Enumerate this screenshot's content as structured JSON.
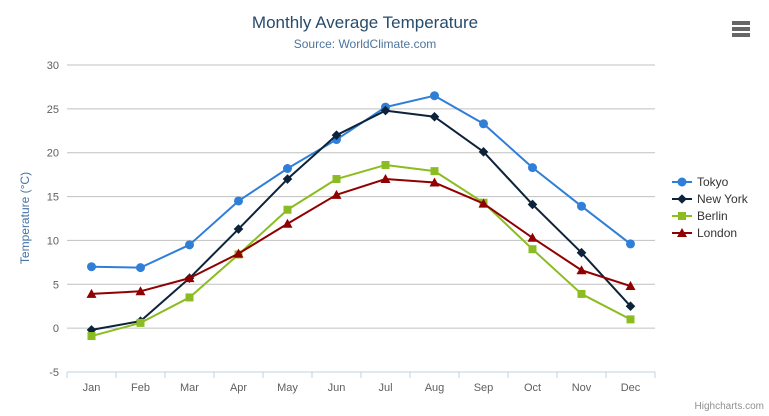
{
  "header": {
    "title": "Monthly Average Temperature",
    "subtitle": "Source: WorldClimate.com"
  },
  "credits": {
    "label": "Highcharts.com"
  },
  "colors": {
    "title": "#274b6d",
    "subtitle": "#4d759e",
    "axis_title": "#4572a7",
    "tick_label": "#606060",
    "grid": "#c0c0c0",
    "axis_line": "#c0d0e0",
    "legend_text": "#333333",
    "credits": "#909090"
  },
  "chart_data": {
    "type": "line",
    "title": "Monthly Average Temperature",
    "subtitle": "Source: WorldClimate.com",
    "categories": [
      "Jan",
      "Feb",
      "Mar",
      "Apr",
      "May",
      "Jun",
      "Jul",
      "Aug",
      "Sep",
      "Oct",
      "Nov",
      "Dec"
    ],
    "xlabel": "",
    "ylabel": "Temperature (°C)",
    "ylim": [
      -5,
      30
    ],
    "yticks": [
      -5,
      0,
      5,
      10,
      15,
      20,
      25,
      30
    ],
    "grid": true,
    "legend_position": "right",
    "series": [
      {
        "name": "Tokyo",
        "color": "#2f7ed8",
        "marker": "circle",
        "values": [
          7.0,
          6.9,
          9.5,
          14.5,
          18.2,
          21.5,
          25.2,
          26.5,
          23.3,
          18.3,
          13.9,
          9.6
        ]
      },
      {
        "name": "New York",
        "color": "#0d233a",
        "marker": "diamond",
        "values": [
          -0.2,
          0.8,
          5.7,
          11.3,
          17.0,
          22.0,
          24.8,
          24.1,
          20.1,
          14.1,
          8.6,
          2.5
        ]
      },
      {
        "name": "Berlin",
        "color": "#8bbc21",
        "marker": "square",
        "values": [
          -0.9,
          0.6,
          3.5,
          8.4,
          13.5,
          17.0,
          18.6,
          17.9,
          14.3,
          9.0,
          3.9,
          1.0
        ]
      },
      {
        "name": "London",
        "color": "#910000",
        "marker": "triangle",
        "values": [
          3.9,
          4.2,
          5.7,
          8.5,
          11.9,
          15.2,
          17.0,
          16.6,
          14.2,
          10.3,
          6.6,
          4.8
        ]
      }
    ]
  }
}
